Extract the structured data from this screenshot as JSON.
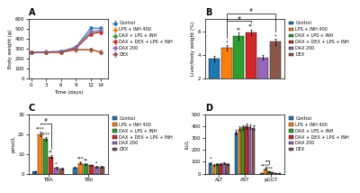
{
  "chart_data": [
    {
      "type": "line",
      "title": "A",
      "xlabel": "Time (days)",
      "ylabel": "Body weight (g)",
      "x": [
        0,
        3,
        6,
        9,
        12,
        14
      ],
      "xlim": [
        -0.5,
        15.5
      ],
      "xticks": [
        0,
        3,
        6,
        9,
        12,
        14
      ],
      "ylim": [
        0,
        600
      ],
      "yticks": [
        0,
        100,
        200,
        300,
        400,
        500,
        600
      ],
      "marker": "o",
      "legend": "upper left",
      "series": [
        {
          "name": "Control",
          "values": [
            265,
            270,
            275,
            320,
            510,
            510
          ],
          "errors": [
            15,
            15,
            15,
            20,
            25,
            25
          ]
        },
        {
          "name": "LPS + INH 400",
          "values": [
            270,
            268,
            265,
            290,
            290,
            265
          ],
          "errors": [
            15,
            15,
            18,
            20,
            20,
            20
          ]
        },
        {
          "name": "DAX + LPS + INH",
          "values": [
            268,
            270,
            272,
            310,
            460,
            480
          ],
          "errors": [
            15,
            15,
            15,
            20,
            22,
            22
          ]
        },
        {
          "name": "DAX + DEX + LPS + INH",
          "values": [
            265,
            268,
            270,
            305,
            450,
            470
          ],
          "errors": [
            15,
            15,
            15,
            18,
            22,
            22
          ]
        },
        {
          "name": "DAX 200",
          "values": [
            270,
            272,
            275,
            315,
            480,
            490
          ],
          "errors": [
            15,
            15,
            15,
            20,
            22,
            22
          ]
        },
        {
          "name": "DEX",
          "values": [
            262,
            265,
            268,
            295,
            295,
            270
          ],
          "errors": [
            15,
            15,
            15,
            18,
            20,
            20
          ]
        }
      ]
    },
    {
      "type": "bar",
      "title": "B",
      "ylabel": "Liver/body weight (%)",
      "categories": [
        null
      ],
      "ylim": [
        2,
        7
      ],
      "yticks": [
        2,
        4,
        6
      ],
      "tick_labels": "y",
      "legend": "upper left",
      "series": [
        {
          "name": "Control",
          "values": [
            3.7
          ],
          "errors": [
            0.25
          ]
        },
        {
          "name": "LPS + INH 400",
          "values": [
            4.6
          ],
          "errors": [
            0.2
          ]
        },
        {
          "name": "DAX + LPS + INH",
          "values": [
            5.6
          ],
          "errors": [
            0.3
          ]
        },
        {
          "name": "DAX + DEX + LPS + INH",
          "values": [
            5.9
          ],
          "errors": [
            0.25
          ]
        },
        {
          "name": "DAX 200",
          "values": [
            3.8
          ],
          "errors": [
            0.2
          ]
        },
        {
          "name": "DEX",
          "values": [
            5.1
          ],
          "errors": [
            0.25
          ]
        }
      ],
      "annotations": [
        {
          "text": "*",
          "series": "LPS + INH 400",
          "category": null
        },
        {
          "text": "**",
          "series": "DAX + LPS + INH",
          "category": null
        },
        {
          "text": "**",
          "series": "DAX + DEX + LPS + INH",
          "category": null
        },
        {
          "text": "*",
          "series": "DEX",
          "category": null
        },
        {
          "text": "#",
          "series": [
            "LPS + INH 400",
            "DAX + DEX + LPS + INH"
          ],
          "category": null
        },
        {
          "text": "#",
          "series": [
            "LPS + INH 400",
            "DEX"
          ],
          "category": null
        }
      ]
    },
    {
      "type": "bar",
      "title": "C",
      "ylabel": "pmol/L",
      "categories": [
        "TBA",
        "TBil"
      ],
      "ylim": [
        0,
        30
      ],
      "yticks": [
        0,
        10,
        20,
        30
      ],
      "legend": "upper left",
      "series": [
        {
          "name": "Control",
          "values": [
            1.0,
            3.2
          ],
          "errors": [
            0.2,
            0.3
          ]
        },
        {
          "name": "LPS + INH 400",
          "values": [
            20.0,
            5.5
          ],
          "errors": [
            1.2,
            0.5
          ]
        },
        {
          "name": "DAX + LPS + INH",
          "values": [
            17.5,
            4.8
          ],
          "errors": [
            1.0,
            0.4
          ]
        },
        {
          "name": "DAX + DEX + LPS + INH",
          "values": [
            8.5,
            4.2
          ],
          "errors": [
            0.7,
            0.4
          ]
        },
        {
          "name": "DAX 200",
          "values": [
            3.0,
            3.5
          ],
          "errors": [
            0.4,
            0.3
          ]
        },
        {
          "name": "DEX",
          "values": [
            2.5,
            3.5
          ],
          "errors": [
            0.3,
            0.3
          ]
        }
      ],
      "annotations": [
        {
          "text": "****",
          "series": "LPS + INH 400",
          "category": "TBA"
        },
        {
          "text": "****",
          "series": "DAX + LPS + INH",
          "category": "TBA"
        },
        {
          "text": "**",
          "series": "DAX + DEX + LPS + INH",
          "category": "TBA"
        },
        {
          "text": "*",
          "series": "DAX 200",
          "category": "TBA"
        },
        {
          "text": "***",
          "series": "LPS + INH 400",
          "category": "TBil"
        },
        {
          "text": "**",
          "series": "DAX + LPS + INH",
          "category": "TBil"
        },
        {
          "text": "*",
          "series": "DAX 200",
          "category": "TBil"
        },
        {
          "text": "#",
          "series": [
            "LPS + INH 400",
            "DAX + DEX + LPS + INH"
          ],
          "category": "TBA"
        }
      ]
    },
    {
      "type": "bar",
      "title": "D",
      "ylabel": "IU/L",
      "categories": [
        "ALT",
        "AST",
        "pGGT"
      ],
      "ylim": [
        0,
        500
      ],
      "yticks": [
        0,
        100,
        200,
        300,
        400,
        500
      ],
      "legend": "upper left",
      "series": [
        {
          "name": "Control",
          "values": [
            90,
            350,
            5
          ],
          "errors": [
            8,
            20,
            1
          ]
        },
        {
          "name": "LPS + INH 400",
          "values": [
            75,
            380,
            38
          ],
          "errors": [
            7,
            18,
            4
          ]
        },
        {
          "name": "DAX + LPS + INH",
          "values": [
            78,
            390,
            16
          ],
          "errors": [
            7,
            20,
            2
          ]
        },
        {
          "name": "DAX + DEX + LPS + INH",
          "values": [
            80,
            400,
            10
          ],
          "errors": [
            8,
            22,
            1.5
          ]
        },
        {
          "name": "DAX 200",
          "values": [
            85,
            395,
            4
          ],
          "errors": [
            7,
            20,
            0.8
          ]
        },
        {
          "name": "DEX",
          "values": [
            78,
            388,
            5
          ],
          "errors": [
            7,
            18,
            0.8
          ]
        }
      ],
      "annotations": [
        {
          "text": "*",
          "series": "Control",
          "category": "ALT"
        },
        {
          "text": "****",
          "series": "LPS + INH 400",
          "category": "pGGT"
        },
        {
          "text": "****",
          "series": "DAX + LPS + INH",
          "category": "pGGT"
        },
        {
          "series": [
            "LPS + INH 400",
            "DAX + LPS + INH"
          ],
          "category": "pGGT"
        }
      ]
    }
  ]
}
